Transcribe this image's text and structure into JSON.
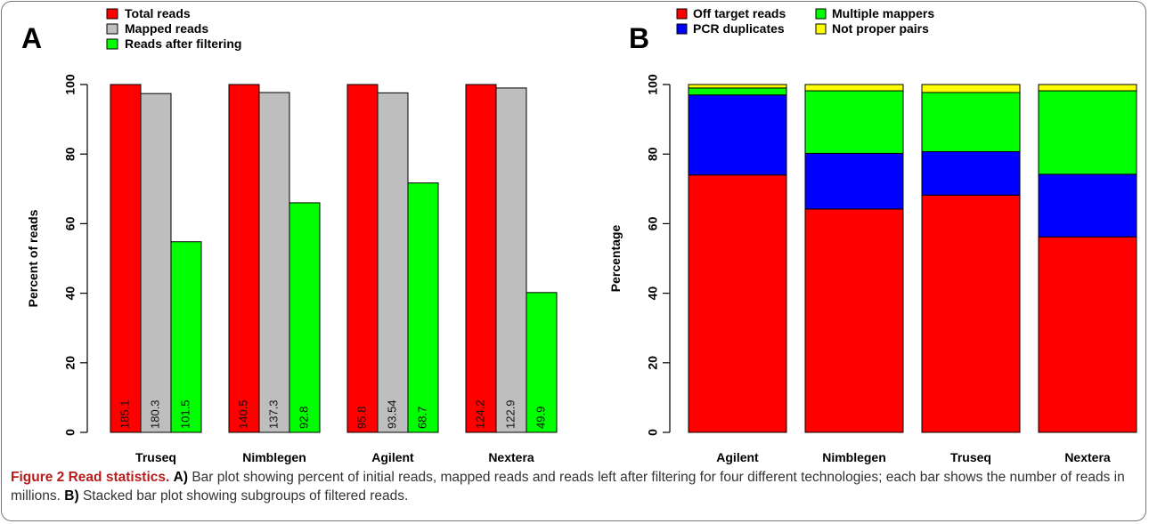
{
  "chart_data": [
    {
      "type": "bar",
      "panel_label": "A",
      "ylabel": "Percent of reads",
      "ylim": [
        0,
        100
      ],
      "yticks": [
        0,
        20,
        40,
        60,
        80,
        100
      ],
      "categories": [
        "Truseq",
        "Nimblegen",
        "Agilent",
        "Nextera"
      ],
      "legend_position": "top-left",
      "series": [
        {
          "name": "Total reads",
          "color": "#ff0000",
          "values": [
            100,
            100,
            100,
            100
          ],
          "labels": [
            "185.1",
            "140.5",
            "95.8",
            "124.2"
          ]
        },
        {
          "name": "Mapped reads",
          "color": "#bebebe",
          "values": [
            97.4,
            97.7,
            97.6,
            99.0
          ],
          "labels": [
            "180.3",
            "137.3",
            "93.54",
            "122.9"
          ]
        },
        {
          "name": "Reads after filtering",
          "color": "#00ff00",
          "values": [
            54.8,
            66.0,
            71.7,
            40.2
          ],
          "labels": [
            "101.5",
            "92.8",
            "68.7",
            "49.9"
          ]
        }
      ]
    },
    {
      "type": "bar",
      "stacked": true,
      "panel_label": "B",
      "ylabel": "Percentage",
      "ylim": [
        0,
        100
      ],
      "yticks": [
        0,
        20,
        40,
        60,
        80,
        100
      ],
      "categories": [
        "Agilent",
        "Nimblegen",
        "Truseq",
        "Nextera"
      ],
      "legend_position": "top-left",
      "series": [
        {
          "name": "Off target reads",
          "color": "#ff0000",
          "values": [
            74.0,
            64.2,
            68.2,
            56.2
          ]
        },
        {
          "name": "PCR duplicates",
          "color": "#0000ff",
          "values": [
            23.0,
            16.0,
            12.5,
            18.0
          ]
        },
        {
          "name": "Multiple mappers",
          "color": "#00ff00",
          "values": [
            2.0,
            18.0,
            17.0,
            24.0
          ]
        },
        {
          "name": "Not proper pairs",
          "color": "#ffff00",
          "values": [
            1.0,
            1.8,
            2.3,
            1.8
          ]
        }
      ]
    }
  ],
  "caption": {
    "figure_label": "Figure 2",
    "title": "Read statistics.",
    "part_a_label": "A)",
    "part_a_text": "Bar plot showing percent of initial reads, mapped reads and reads left after filtering for four different technologies; each bar shows the number of reads in millions.",
    "part_b_label": "B)",
    "part_b_text": "Stacked bar plot showing subgroups of filtered reads."
  }
}
